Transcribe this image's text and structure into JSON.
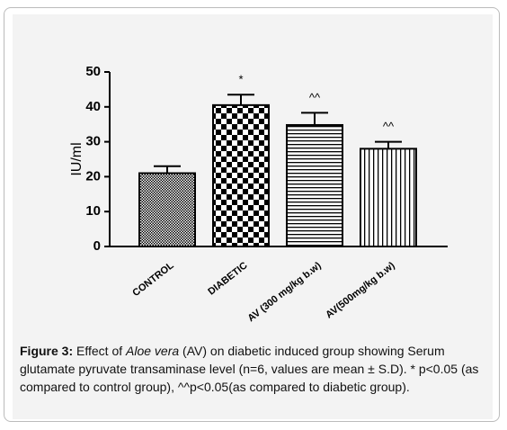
{
  "chart_data": {
    "type": "bar",
    "y_label": "IU/ml",
    "categories": [
      "CONTROL",
      "DIABETIC",
      "AV (300 mg/kg b.w)",
      "AV(500mg/kg b.w)"
    ],
    "values": [
      21,
      40.5,
      34.8,
      28
    ],
    "errors": [
      2,
      3,
      3.5,
      2
    ],
    "annotations": [
      null,
      "*",
      "^^",
      "^^"
    ],
    "color": "#000000",
    "ylim": [
      0,
      50
    ],
    "yticks": [
      0,
      10,
      20,
      30,
      40,
      50
    ],
    "grid": false,
    "caption": {
      "label": "Figure 3:",
      "before": " Effect of ",
      "italic": "Aloe vera",
      "after": " (AV) on diabetic induced group showing Serum glutamate pyruvate transaminase level  (n=6, values are mean ± S.D). * p<0.05 (as compared to control group), ^^p<0.05(as compared to diabetic group)."
    }
  }
}
